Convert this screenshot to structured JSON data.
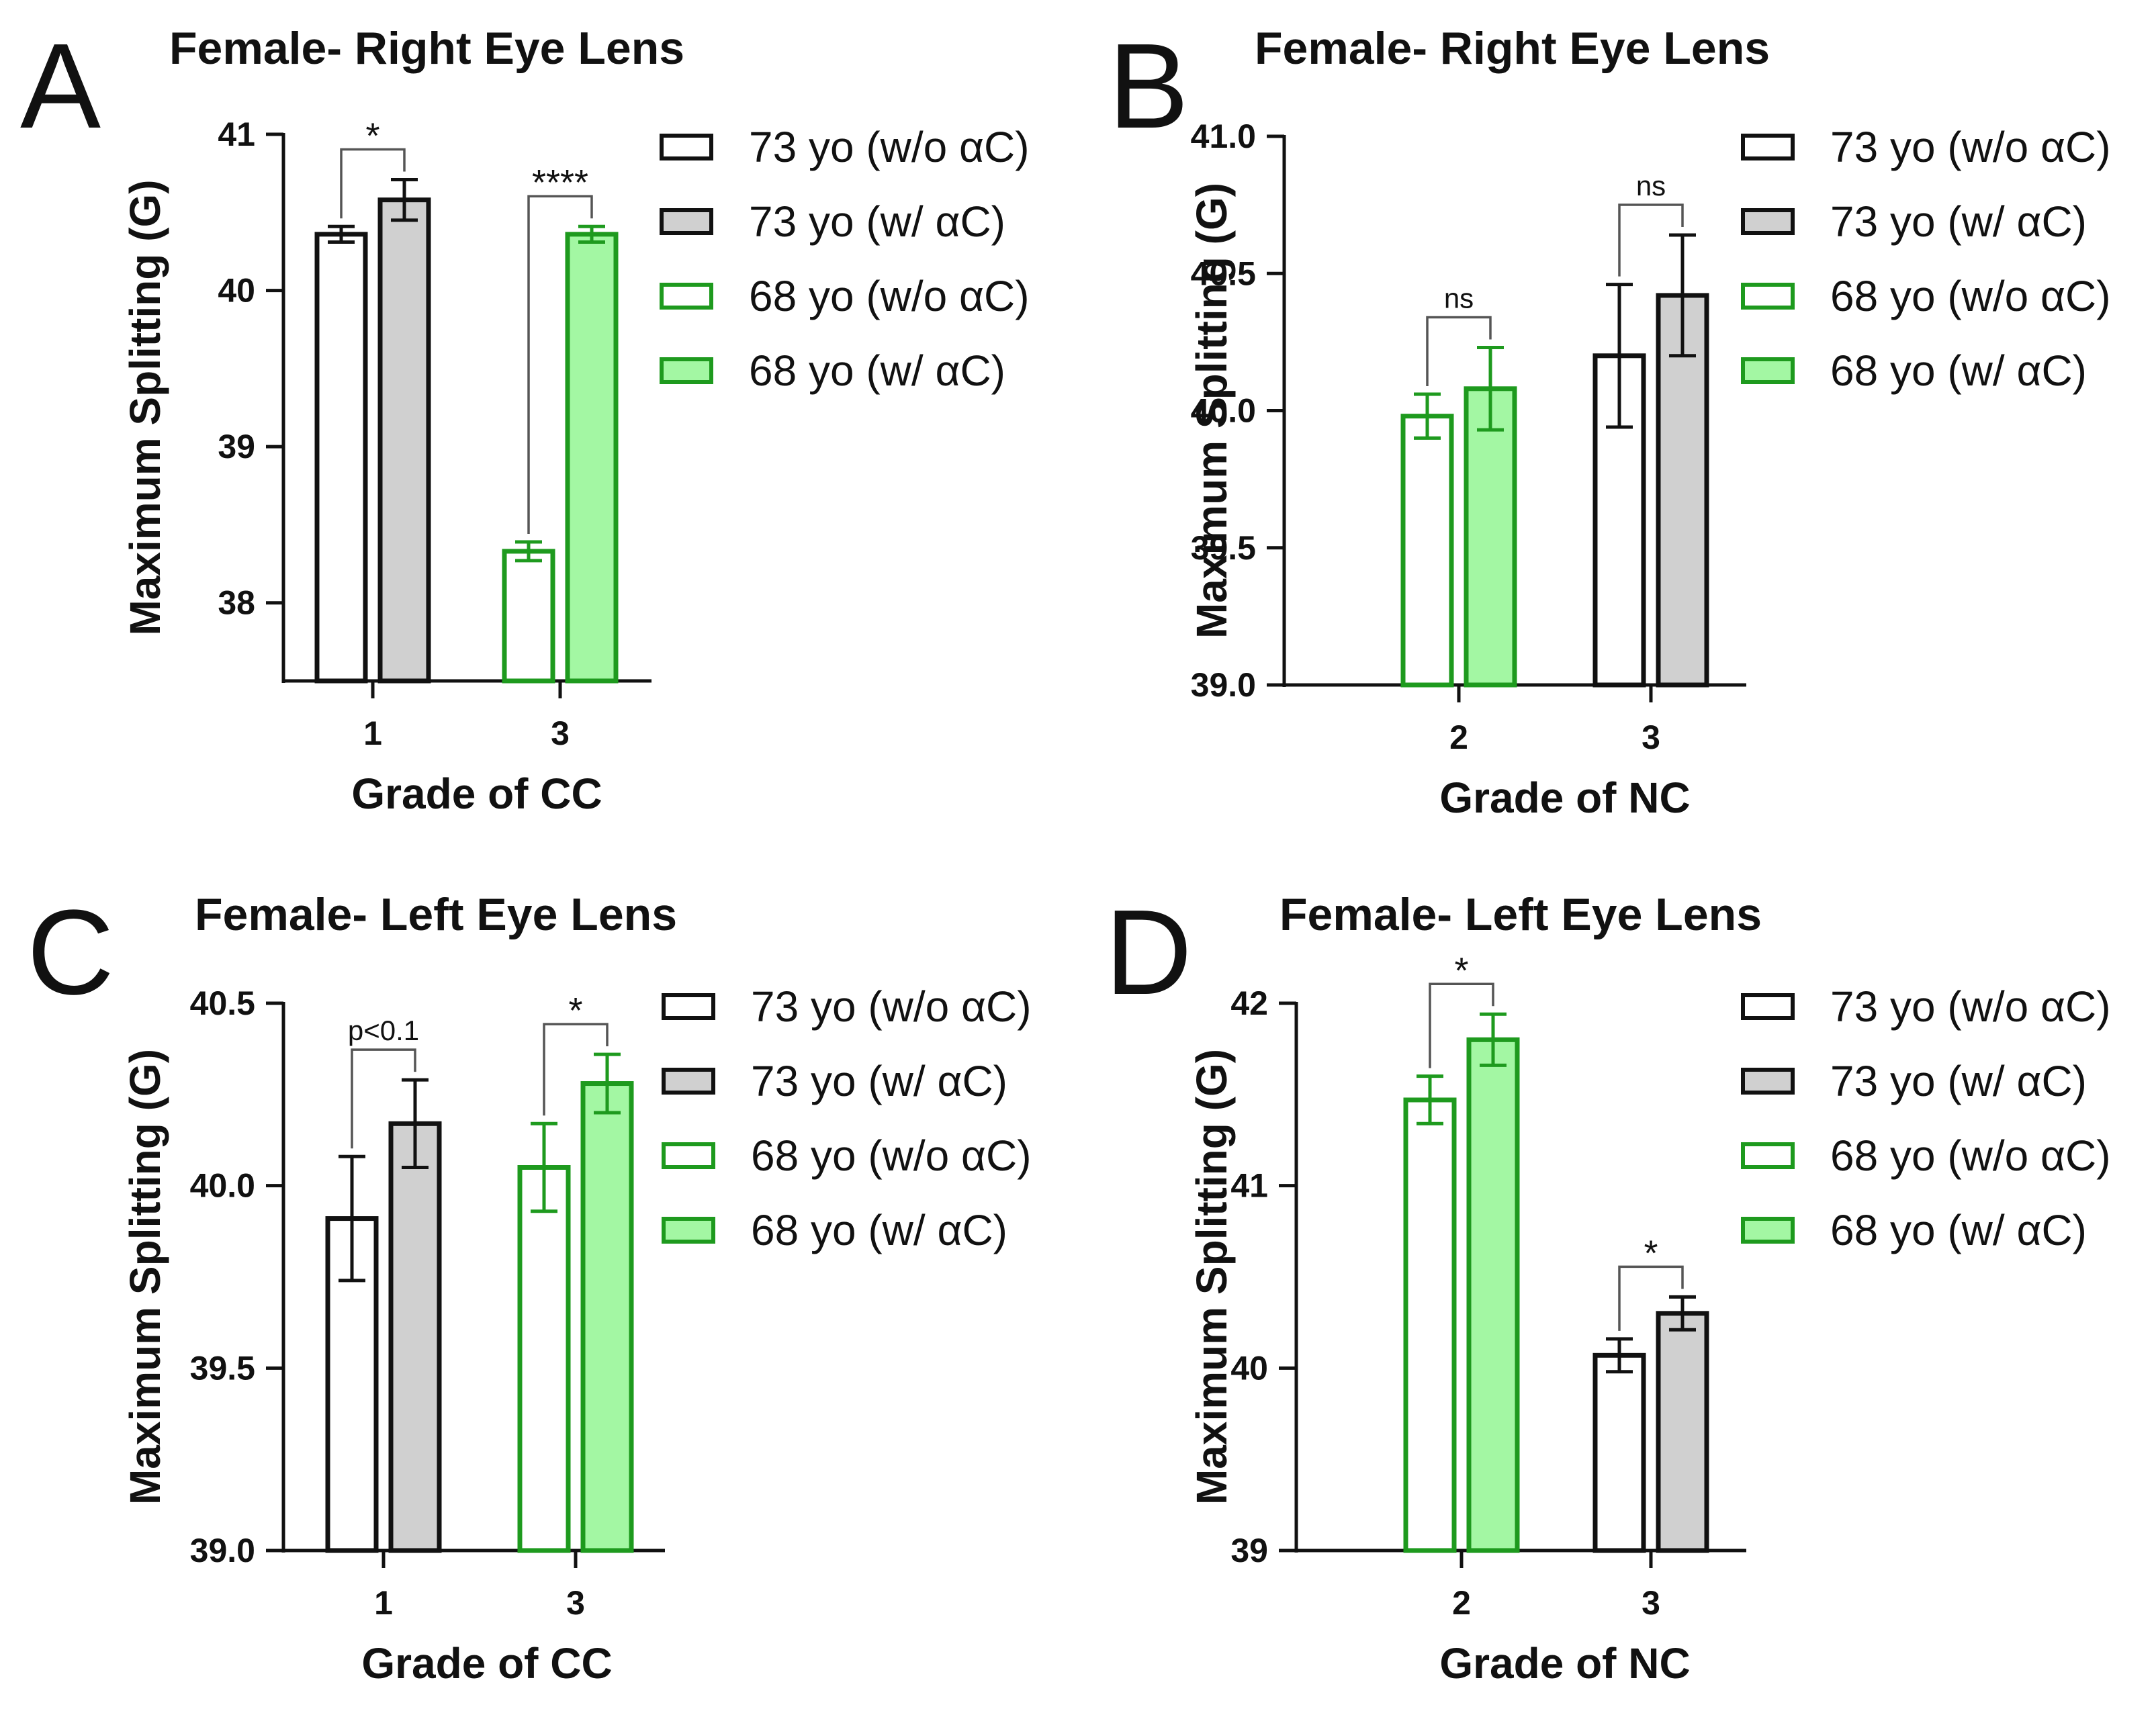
{
  "colors": {
    "axis": "#111111",
    "black_edge": "#111111",
    "gray_fill": "#d0d0d0",
    "green_edge": "#1e9a1e",
    "green_fill": "#a3f7a3",
    "white_fill": "#ffffff"
  },
  "chart_data": [
    {
      "panel": "A",
      "type": "bar",
      "title": "Female- Right Eye Lens",
      "xlabel": "Grade of CC",
      "ylabel": "Maximum Splitting (G)",
      "ylim": [
        37.5,
        41
      ],
      "yticks": [
        38,
        39,
        40,
        41
      ],
      "ytick_labels": [
        "38",
        "39",
        "40",
        "41"
      ],
      "legend": [
        "73 yo (w/o αC)",
        "73 yo (w/ αC)",
        "68 yo (w/o αC)",
        "68 yo (w/ αC)"
      ],
      "groups": [
        {
          "category": "1",
          "bars": [
            {
              "series": "73 yo (w/o αC)",
              "style": "black-white",
              "value": 40.36,
              "error": 0.05
            },
            {
              "series": "73 yo (w/ αC)",
              "style": "black-gray",
              "value": 40.58,
              "error": 0.13
            }
          ],
          "significance": "*"
        },
        {
          "category": "3",
          "bars": [
            {
              "series": "68 yo (w/o αC)",
              "style": "green-white",
              "value": 38.33,
              "error": 0.06
            },
            {
              "series": "68 yo (w/ αC)",
              "style": "green-green",
              "value": 40.36,
              "error": 0.05
            }
          ],
          "significance": "****"
        }
      ]
    },
    {
      "panel": "B",
      "type": "bar",
      "title": "Female- Right Eye Lens",
      "xlabel": "Grade of NC",
      "ylabel": "Maximum Splitting (G)",
      "ylim": [
        39.0,
        41.0
      ],
      "yticks": [
        39.0,
        39.5,
        40.0,
        40.5,
        41.0
      ],
      "ytick_labels": [
        "39.0",
        "39.5",
        "40.0",
        "40.5",
        "41.0"
      ],
      "legend": [
        "73 yo (w/o αC)",
        "73 yo (w/ αC)",
        "68 yo (w/o αC)",
        "68 yo (w/ αC)"
      ],
      "groups": [
        {
          "category": "2",
          "bars": [
            {
              "series": "68 yo (w/o αC)",
              "style": "green-white",
              "value": 39.98,
              "error": 0.08
            },
            {
              "series": "68 yo (w/ αC)",
              "style": "green-green",
              "value": 40.08,
              "error": 0.15
            }
          ],
          "significance": "ns"
        },
        {
          "category": "3",
          "bars": [
            {
              "series": "73 yo (w/o αC)",
              "style": "black-white",
              "value": 40.2,
              "error": 0.26
            },
            {
              "series": "73 yo (w/ αC)",
              "style": "black-gray",
              "value": 40.42,
              "error": 0.22
            }
          ],
          "significance": "ns"
        }
      ]
    },
    {
      "panel": "C",
      "type": "bar",
      "title": "Female- Left Eye Lens",
      "xlabel": "Grade of CC",
      "ylabel": "Maximum Splitting (G)",
      "ylim": [
        39.0,
        40.5
      ],
      "yticks": [
        39.0,
        39.5,
        40.0,
        40.5
      ],
      "ytick_labels": [
        "39.0",
        "39.5",
        "40.0",
        "40.5"
      ],
      "legend": [
        "73 yo (w/o αC)",
        "73 yo (w/ αC)",
        "68 yo (w/o αC)",
        "68 yo (w/ αC)"
      ],
      "groups": [
        {
          "category": "1",
          "bars": [
            {
              "series": "73 yo (w/o αC)",
              "style": "black-white",
              "value": 39.91,
              "error": 0.17
            },
            {
              "series": "73 yo (w/ αC)",
              "style": "black-gray",
              "value": 40.17,
              "error": 0.12
            }
          ],
          "significance": "p<0.1"
        },
        {
          "category": "3",
          "bars": [
            {
              "series": "68 yo (w/o αC)",
              "style": "green-white",
              "value": 40.05,
              "error": 0.12
            },
            {
              "series": "68 yo (w/ αC)",
              "style": "green-green",
              "value": 40.28,
              "error": 0.08
            }
          ],
          "significance": "*"
        }
      ]
    },
    {
      "panel": "D",
      "type": "bar",
      "title": "Female- Left Eye Lens",
      "xlabel": "Grade of NC",
      "ylabel": "Maximum Splitting (G)",
      "ylim": [
        39,
        42
      ],
      "yticks": [
        39,
        40,
        41,
        42
      ],
      "ytick_labels": [
        "39",
        "40",
        "41",
        "42"
      ],
      "legend": [
        "73 yo (w/o αC)",
        "73 yo (w/ αC)",
        "68 yo (w/o αC)",
        "68 yo (w/ αC)"
      ],
      "groups": [
        {
          "category": "2",
          "bars": [
            {
              "series": "68 yo (w/o αC)",
              "style": "green-white",
              "value": 41.47,
              "error": 0.13
            },
            {
              "series": "68 yo (w/ αC)",
              "style": "green-green",
              "value": 41.8,
              "error": 0.14
            }
          ],
          "significance": "*"
        },
        {
          "category": "3",
          "bars": [
            {
              "series": "73 yo (w/o αC)",
              "style": "black-white",
              "value": 40.07,
              "error": 0.09
            },
            {
              "series": "73 yo (w/ αC)",
              "style": "black-gray",
              "value": 40.3,
              "error": 0.09
            }
          ],
          "significance": "*"
        }
      ]
    }
  ]
}
